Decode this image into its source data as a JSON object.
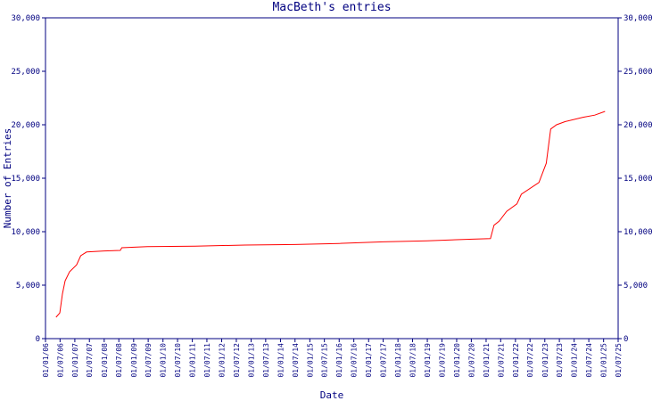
{
  "chart_data": {
    "type": "line",
    "title": "MacBeth's entries",
    "x_label": "Date",
    "y_label": "Number of Entries",
    "xlim": [
      "2006-01-01",
      "2025-07-01"
    ],
    "xticks": [
      {
        "value": "2006-01-01",
        "label": "01/01/06"
      },
      {
        "value": "2006-07-01",
        "label": "01/07/06"
      },
      {
        "value": "2007-01-01",
        "label": "01/01/07"
      },
      {
        "value": "2007-07-01",
        "label": "01/07/07"
      },
      {
        "value": "2008-01-01",
        "label": "01/01/08"
      },
      {
        "value": "2008-07-01",
        "label": "01/07/08"
      },
      {
        "value": "2009-01-01",
        "label": "01/01/09"
      },
      {
        "value": "2009-07-01",
        "label": "01/07/09"
      },
      {
        "value": "2010-01-01",
        "label": "01/01/10"
      },
      {
        "value": "2010-07-01",
        "label": "01/07/10"
      },
      {
        "value": "2011-01-01",
        "label": "01/01/11"
      },
      {
        "value": "2011-07-01",
        "label": "01/07/11"
      },
      {
        "value": "2012-01-01",
        "label": "01/01/12"
      },
      {
        "value": "2012-07-01",
        "label": "01/07/12"
      },
      {
        "value": "2013-01-01",
        "label": "01/01/13"
      },
      {
        "value": "2013-07-01",
        "label": "01/07/13"
      },
      {
        "value": "2014-01-01",
        "label": "01/01/14"
      },
      {
        "value": "2014-07-01",
        "label": "01/07/14"
      },
      {
        "value": "2015-01-01",
        "label": "01/01/15"
      },
      {
        "value": "2015-07-01",
        "label": "01/07/15"
      },
      {
        "value": "2016-01-01",
        "label": "01/01/16"
      },
      {
        "value": "2016-07-01",
        "label": "01/07/16"
      },
      {
        "value": "2017-01-01",
        "label": "01/01/17"
      },
      {
        "value": "2017-07-01",
        "label": "01/07/17"
      },
      {
        "value": "2018-01-01",
        "label": "01/01/18"
      },
      {
        "value": "2018-07-01",
        "label": "01/07/18"
      },
      {
        "value": "2019-01-01",
        "label": "01/01/19"
      },
      {
        "value": "2019-07-01",
        "label": "01/07/19"
      },
      {
        "value": "2020-01-01",
        "label": "01/01/20"
      },
      {
        "value": "2020-07-01",
        "label": "01/07/20"
      },
      {
        "value": "2021-01-01",
        "label": "01/01/21"
      },
      {
        "value": "2021-07-01",
        "label": "01/07/21"
      },
      {
        "value": "2022-01-01",
        "label": "01/01/22"
      },
      {
        "value": "2022-07-01",
        "label": "01/07/22"
      },
      {
        "value": "2023-01-01",
        "label": "01/01/23"
      },
      {
        "value": "2023-07-01",
        "label": "01/07/23"
      },
      {
        "value": "2024-01-01",
        "label": "01/01/24"
      },
      {
        "value": "2024-07-01",
        "label": "01/07/24"
      },
      {
        "value": "2025-01-01",
        "label": "01/01/25"
      },
      {
        "value": "2025-07-01",
        "label": "01/07/25"
      }
    ],
    "ylim": [
      0,
      30000
    ],
    "yticks": [
      0,
      {
        "value": 5000,
        "label": "5,000"
      },
      {
        "value": 10000,
        "label": "10,000"
      },
      {
        "value": 15000,
        "label": "15,000"
      },
      {
        "value": 20000,
        "label": "20,000"
      },
      {
        "value": 25000,
        "label": "25,000"
      },
      {
        "value": 30000,
        "label": "30,000"
      }
    ],
    "x": [
      "2006-05-12",
      "2006-06-28",
      "2006-07-31",
      "2006-09-02",
      "2006-10-27",
      "2007-01-23",
      "2007-03-15",
      "2007-05-27",
      "2008-01-01",
      "2008-07-19",
      "2008-08-07",
      "2009-06-21",
      "2011-02-06",
      "2012-10-19",
      "2014-07-02",
      "2016-01-01",
      "2017-07-02",
      "2019-01-01",
      "2020-07-19",
      "2021-02-24",
      "2021-04-09",
      "2021-06-14",
      "2021-09-13",
      "2022-01-19",
      "2022-03-15",
      "2022-10-20",
      "2023-01-19",
      "2023-03-15",
      "2023-05-27",
      "2023-09-13",
      "2024-04-20",
      "2024-09-13",
      "2025-01-19"
    ],
    "series": [
      {
        "color": "#ff0000",
        "values": [
          2000,
          2400,
          4200,
          5400,
          6250,
          6900,
          7750,
          8100,
          8200,
          8250,
          8500,
          8600,
          8650,
          8750,
          8800,
          8900,
          9050,
          9150,
          9300,
          9350,
          10600,
          11000,
          11900,
          12600,
          13500,
          14600,
          16400,
          19600,
          20000,
          20300,
          20700,
          20900,
          21250
        ]
      }
    ],
    "axis_color": "#000080"
  }
}
